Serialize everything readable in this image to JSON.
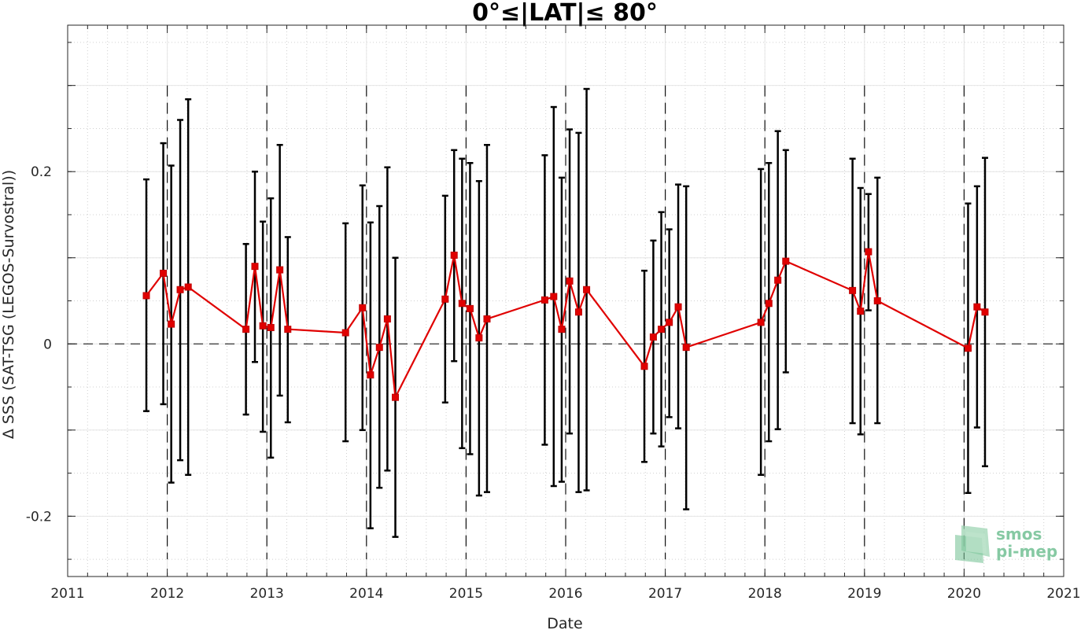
{
  "chart_data": {
    "type": "line",
    "title": "0°≤|LAT|≤ 80°",
    "xlabel": "Date",
    "ylabel": "Δ SSS (SAT-TSG (LEGOS-Survostral))",
    "xlim": [
      2011,
      2021
    ],
    "ylim": [
      -0.27,
      0.37
    ],
    "x_ticks": [
      "2011",
      "2012",
      "2013",
      "2014",
      "2015",
      "2016",
      "2017",
      "2018",
      "2019",
      "2020",
      "2021"
    ],
    "y_ticks": [
      "-0.2",
      "0",
      "0.2"
    ],
    "grid": true,
    "zero_line": true,
    "year_boundaries": true,
    "series": [
      {
        "color": "#e00000",
        "marker": "square",
        "errorbar_color": "#000000",
        "points": [
          {
            "x": 2011.79,
            "y": 0.056,
            "lo": -0.078,
            "hi": 0.191
          },
          {
            "x": 2011.96,
            "y": 0.082,
            "lo": -0.07,
            "hi": 0.233
          },
          {
            "x": 2012.04,
            "y": 0.023,
            "lo": -0.161,
            "hi": 0.207
          },
          {
            "x": 2012.13,
            "y": 0.063,
            "lo": -0.135,
            "hi": 0.26
          },
          {
            "x": 2012.21,
            "y": 0.066,
            "lo": -0.152,
            "hi": 0.284
          },
          {
            "x": 2012.79,
            "y": 0.017,
            "lo": -0.082,
            "hi": 0.116
          },
          {
            "x": 2012.88,
            "y": 0.09,
            "lo": -0.021,
            "hi": 0.2
          },
          {
            "x": 2012.96,
            "y": 0.021,
            "lo": -0.102,
            "hi": 0.142
          },
          {
            "x": 2013.04,
            "y": 0.019,
            "lo": -0.132,
            "hi": 0.169
          },
          {
            "x": 2013.13,
            "y": 0.086,
            "lo": -0.06,
            "hi": 0.231
          },
          {
            "x": 2013.21,
            "y": 0.017,
            "lo": -0.091,
            "hi": 0.124
          },
          {
            "x": 2013.79,
            "y": 0.013,
            "lo": -0.113,
            "hi": 0.14
          },
          {
            "x": 2013.96,
            "y": 0.042,
            "lo": -0.1,
            "hi": 0.184
          },
          {
            "x": 2014.04,
            "y": -0.036,
            "lo": -0.214,
            "hi": 0.141
          },
          {
            "x": 2014.13,
            "y": -0.004,
            "lo": -0.167,
            "hi": 0.16
          },
          {
            "x": 2014.21,
            "y": 0.029,
            "lo": -0.147,
            "hi": 0.205
          },
          {
            "x": 2014.29,
            "y": -0.062,
            "lo": -0.224,
            "hi": 0.1
          },
          {
            "x": 2014.79,
            "y": 0.052,
            "lo": -0.068,
            "hi": 0.172
          },
          {
            "x": 2014.88,
            "y": 0.103,
            "lo": -0.02,
            "hi": 0.225
          },
          {
            "x": 2014.96,
            "y": 0.047,
            "lo": -0.121,
            "hi": 0.215
          },
          {
            "x": 2015.04,
            "y": 0.041,
            "lo": -0.128,
            "hi": 0.21
          },
          {
            "x": 2015.13,
            "y": 0.007,
            "lo": -0.176,
            "hi": 0.189
          },
          {
            "x": 2015.21,
            "y": 0.029,
            "lo": -0.172,
            "hi": 0.231
          },
          {
            "x": 2015.79,
            "y": 0.051,
            "lo": -0.117,
            "hi": 0.219
          },
          {
            "x": 2015.88,
            "y": 0.055,
            "lo": -0.165,
            "hi": 0.275
          },
          {
            "x": 2015.96,
            "y": 0.017,
            "lo": -0.16,
            "hi": 0.193
          },
          {
            "x": 2016.04,
            "y": 0.073,
            "lo": -0.104,
            "hi": 0.249
          },
          {
            "x": 2016.13,
            "y": 0.037,
            "lo": -0.172,
            "hi": 0.245
          },
          {
            "x": 2016.21,
            "y": 0.063,
            "lo": -0.17,
            "hi": 0.296
          },
          {
            "x": 2016.79,
            "y": -0.026,
            "lo": -0.137,
            "hi": 0.085
          },
          {
            "x": 2016.88,
            "y": 0.008,
            "lo": -0.104,
            "hi": 0.12
          },
          {
            "x": 2016.96,
            "y": 0.017,
            "lo": -0.119,
            "hi": 0.153
          },
          {
            "x": 2017.04,
            "y": 0.025,
            "lo": -0.085,
            "hi": 0.133
          },
          {
            "x": 2017.13,
            "y": 0.043,
            "lo": -0.098,
            "hi": 0.185
          },
          {
            "x": 2017.21,
            "y": -0.004,
            "lo": -0.192,
            "hi": 0.183
          },
          {
            "x": 2017.96,
            "y": 0.025,
            "lo": -0.152,
            "hi": 0.203
          },
          {
            "x": 2018.04,
            "y": 0.047,
            "lo": -0.113,
            "hi": 0.21
          },
          {
            "x": 2018.13,
            "y": 0.074,
            "lo": -0.099,
            "hi": 0.247
          },
          {
            "x": 2018.21,
            "y": 0.096,
            "lo": -0.033,
            "hi": 0.225
          },
          {
            "x": 2018.88,
            "y": 0.062,
            "lo": -0.092,
            "hi": 0.215
          },
          {
            "x": 2018.96,
            "y": 0.038,
            "lo": -0.105,
            "hi": 0.181
          },
          {
            "x": 2019.04,
            "y": 0.107,
            "lo": 0.039,
            "hi": 0.174
          },
          {
            "x": 2019.13,
            "y": 0.05,
            "lo": -0.092,
            "hi": 0.193
          },
          {
            "x": 2020.04,
            "y": -0.005,
            "lo": -0.173,
            "hi": 0.163
          },
          {
            "x": 2020.13,
            "y": 0.043,
            "lo": -0.097,
            "hi": 0.183
          },
          {
            "x": 2020.21,
            "y": 0.037,
            "lo": -0.142,
            "hi": 0.216
          }
        ]
      }
    ]
  },
  "logo": {
    "line1": "smos",
    "line2": "pi-mep",
    "color": "#86c9a3"
  }
}
